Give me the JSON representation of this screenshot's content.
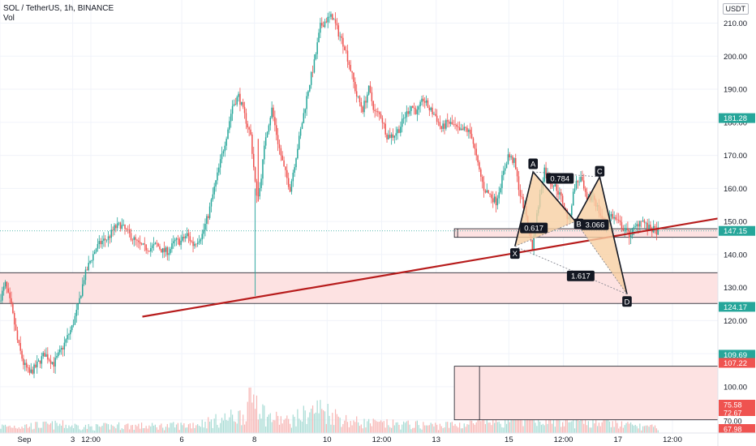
{
  "header": {
    "symbol_line": "SOL / TetherUS, 1h, BINANCE",
    "volume_label": "Vol"
  },
  "currency": "USDT",
  "colors": {
    "up": "#26a69a",
    "down": "#ef5350",
    "trendline": "#b71c1c",
    "zone_fill": "#fde2e2",
    "zone_border": "#131722",
    "pattern_fill": "#f8cfa3",
    "price_line": "#26a69a"
  },
  "chart_data": {
    "type": "candlestick",
    "ylim": [
      86,
      217
    ],
    "y_ticks": [
      "210.00",
      "200.00",
      "190.00",
      "180.00",
      "170.00",
      "160.00",
      "150.00",
      "140.00",
      "130.00",
      "120.00",
      "110.00",
      "100.00",
      "90.00"
    ],
    "y_tick_values": [
      210,
      200,
      190,
      180,
      170,
      160,
      150,
      140,
      130,
      120,
      110,
      100,
      90
    ],
    "x_ticks": [
      "Sep",
      "3",
      "12:00",
      "6",
      "8",
      "10",
      "12:00",
      "13",
      "15",
      "12:00",
      "17",
      "12:00"
    ],
    "x_tick_hours": [
      0,
      48,
      60,
      120,
      168,
      216,
      252,
      288,
      336,
      372,
      408,
      444
    ],
    "x_range_hours": [
      0,
      474
    ],
    "last_bar_hour": 434,
    "price_labels": [
      {
        "text": "181.28",
        "value": 181.28,
        "color": "#26a69a"
      },
      {
        "text": "147.15",
        "value": 147.15,
        "color": "#26a69a"
      },
      {
        "text": "124.17",
        "value": 124.17,
        "color": "#26a69a"
      },
      {
        "text": "109.69",
        "value": 109.69,
        "color": "#26a69a"
      },
      {
        "text": "107.22",
        "value": 107.22,
        "color": "#ef5350"
      }
    ],
    "volume_labels": [
      {
        "text": "75.58",
        "color": "#ef5350"
      },
      {
        "text": "72.67",
        "color": "#ef5350"
      },
      {
        "text": "70.00",
        "color": "#b2b5be"
      },
      {
        "text": "67.98",
        "color": "#ef5350"
      }
    ],
    "price_path": [
      [
        0,
        126
      ],
      [
        4,
        131
      ],
      [
        8,
        124
      ],
      [
        12,
        114
      ],
      [
        16,
        107
      ],
      [
        20,
        104
      ],
      [
        24,
        106
      ],
      [
        30,
        110
      ],
      [
        36,
        107
      ],
      [
        42,
        112
      ],
      [
        48,
        118
      ],
      [
        52,
        124
      ],
      [
        56,
        133
      ],
      [
        60,
        138
      ],
      [
        64,
        142
      ],
      [
        68,
        144
      ],
      [
        72,
        145
      ],
      [
        76,
        148
      ],
      [
        80,
        149
      ],
      [
        84,
        147
      ],
      [
        88,
        145
      ],
      [
        92,
        143
      ],
      [
        96,
        142
      ],
      [
        100,
        142
      ],
      [
        104,
        143
      ],
      [
        108,
        141
      ],
      [
        112,
        141
      ],
      [
        116,
        144
      ],
      [
        120,
        144
      ],
      [
        124,
        146
      ],
      [
        128,
        143
      ],
      [
        134,
        146
      ],
      [
        138,
        152
      ],
      [
        142,
        160
      ],
      [
        146,
        168
      ],
      [
        150,
        176
      ],
      [
        154,
        185
      ],
      [
        158,
        188
      ],
      [
        162,
        182
      ],
      [
        166,
        176
      ],
      [
        170,
        157
      ],
      [
        172,
        160
      ],
      [
        176,
        176
      ],
      [
        180,
        184
      ],
      [
        184,
        174
      ],
      [
        188,
        166
      ],
      [
        192,
        160
      ],
      [
        196,
        170
      ],
      [
        200,
        180
      ],
      [
        204,
        190
      ],
      [
        208,
        198
      ],
      [
        212,
        209
      ],
      [
        216,
        211
      ],
      [
        220,
        212
      ],
      [
        224,
        207
      ],
      [
        228,
        203
      ],
      [
        232,
        196
      ],
      [
        236,
        188
      ],
      [
        240,
        184
      ],
      [
        244,
        190
      ],
      [
        248,
        183
      ],
      [
        252,
        182
      ],
      [
        256,
        176
      ],
      [
        260,
        176
      ],
      [
        264,
        178
      ],
      [
        268,
        182
      ],
      [
        272,
        185
      ],
      [
        276,
        183
      ],
      [
        280,
        187
      ],
      [
        284,
        184
      ],
      [
        288,
        182
      ],
      [
        292,
        178
      ],
      [
        296,
        180
      ],
      [
        300,
        179
      ],
      [
        304,
        177
      ],
      [
        308,
        178
      ],
      [
        312,
        176
      ],
      [
        316,
        167
      ],
      [
        320,
        160
      ],
      [
        324,
        158
      ],
      [
        328,
        156
      ],
      [
        332,
        163
      ],
      [
        336,
        170
      ],
      [
        340,
        168
      ],
      [
        344,
        158
      ],
      [
        348,
        152
      ],
      [
        352,
        142
      ],
      [
        356,
        155
      ],
      [
        360,
        166
      ],
      [
        364,
        162
      ],
      [
        368,
        160
      ],
      [
        372,
        156
      ],
      [
        376,
        150
      ],
      [
        380,
        161
      ],
      [
        384,
        163
      ],
      [
        388,
        156
      ],
      [
        392,
        158
      ],
      [
        396,
        153
      ],
      [
        400,
        149
      ],
      [
        404,
        152
      ],
      [
        408,
        150
      ],
      [
        412,
        148
      ],
      [
        416,
        146
      ],
      [
        420,
        148
      ],
      [
        424,
        151
      ],
      [
        428,
        148
      ],
      [
        434,
        147.15
      ]
    ],
    "volume_profile": [
      [
        0,
        8
      ],
      [
        20,
        9
      ],
      [
        40,
        10
      ],
      [
        60,
        7
      ],
      [
        80,
        9
      ],
      [
        100,
        8
      ],
      [
        120,
        9
      ],
      [
        140,
        14
      ],
      [
        160,
        22
      ],
      [
        168,
        48
      ],
      [
        175,
        20
      ],
      [
        190,
        14
      ],
      [
        210,
        30
      ],
      [
        230,
        14
      ],
      [
        250,
        11
      ],
      [
        270,
        10
      ],
      [
        290,
        9
      ],
      [
        310,
        11
      ],
      [
        330,
        16
      ],
      [
        350,
        22
      ],
      [
        370,
        13
      ],
      [
        390,
        15
      ],
      [
        410,
        10
      ],
      [
        434,
        6
      ]
    ],
    "zones": [
      {
        "x0": -2,
        "x1": 474,
        "y0": 134.5,
        "y1": 125.2
      },
      {
        "x0": 300,
        "x1": 474,
        "y0": 106.2,
        "y1": 90.0
      },
      {
        "x0": 300,
        "x1": 474,
        "y0": 147.8,
        "y1": 145.2
      }
    ],
    "trendline": {
      "x0": 94,
      "y0": 121.2,
      "x1": 474,
      "y1": 150.9
    },
    "harmonic": {
      "points": {
        "X": [
          340,
          142.5
        ],
        "A": [
          352,
          165
        ],
        "B": [
          380,
          150
        ],
        "C": [
          396,
          163.5
        ],
        "D": [
          414,
          128
        ]
      },
      "labels": [
        "X",
        "A",
        "B",
        "C",
        "D"
      ],
      "ratios": [
        "0.784",
        "0.617",
        "3.066",
        "1.617"
      ]
    }
  }
}
